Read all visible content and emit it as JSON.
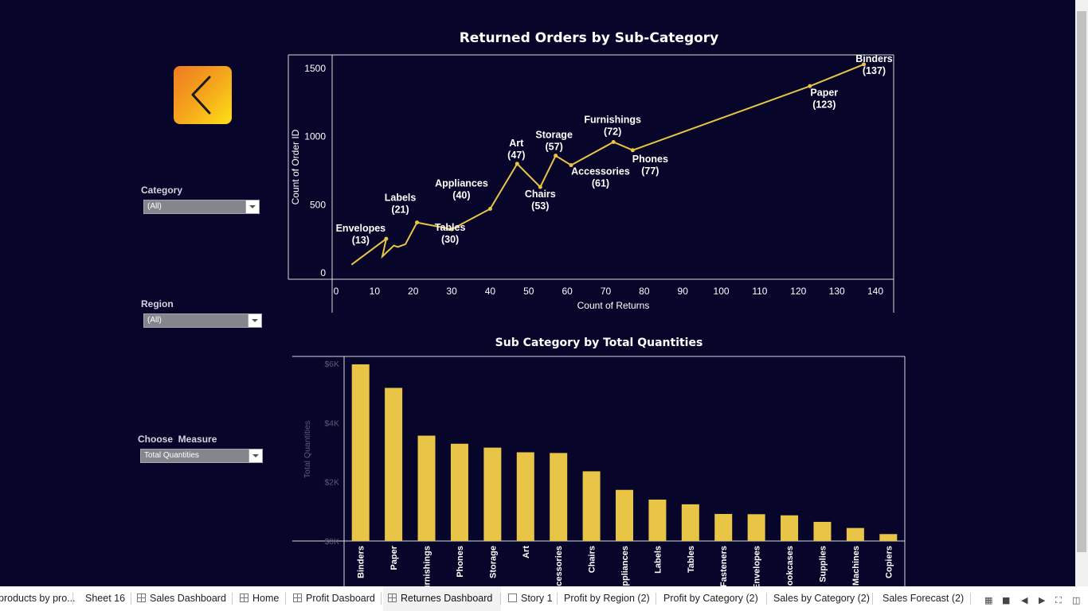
{
  "filters": {
    "category": {
      "label": "Category",
      "value": "(All)"
    },
    "region": {
      "label": "Region",
      "value": "(All)"
    },
    "measure": {
      "label": "Choose  Measure",
      "value": "Total Quantities"
    }
  },
  "back_button": {
    "icon": "chevron-left-icon"
  },
  "chart_data": [
    {
      "type": "line",
      "title": "Returned Orders by Sub-Category",
      "xlabel": "Count of Returns",
      "ylabel": "Count of Order ID",
      "xlim": [
        0,
        145
      ],
      "ylim": [
        0,
        1550
      ],
      "xticks": [
        0,
        10,
        20,
        30,
        40,
        50,
        60,
        70,
        80,
        90,
        100,
        110,
        120,
        130,
        140
      ],
      "yticks": [
        0,
        500,
        1000,
        1500
      ],
      "color": "#e8c547",
      "points": [
        {
          "x": 4,
          "y": 60
        },
        {
          "x": 13,
          "y": 250,
          "label": "Envelopes",
          "value_label": "(13)"
        },
        {
          "x": 12,
          "y": 120
        },
        {
          "x": 15,
          "y": 200
        },
        {
          "x": 16,
          "y": 190
        },
        {
          "x": 18,
          "y": 210
        },
        {
          "x": 21,
          "y": 370,
          "label": "Labels",
          "value_label": "(21)"
        },
        {
          "x": 30,
          "y": 320,
          "label": "Tables",
          "value_label": "(30)"
        },
        {
          "x": 40,
          "y": 470,
          "label": "Appliances",
          "value_label": "(40)"
        },
        {
          "x": 47,
          "y": 800,
          "label": "Art",
          "value_label": "(47)"
        },
        {
          "x": 53,
          "y": 630,
          "label": "Chairs",
          "value_label": "(53)"
        },
        {
          "x": 57,
          "y": 860,
          "label": "Storage",
          "value_label": "(57)"
        },
        {
          "x": 61,
          "y": 790,
          "label": "Accessories",
          "value_label": "(61)"
        },
        {
          "x": 72,
          "y": 960,
          "label": "Furnishings",
          "value_label": "(72)"
        },
        {
          "x": 77,
          "y": 900,
          "label": "Phones",
          "value_label": "(77)"
        },
        {
          "x": 123,
          "y": 1370,
          "label": "Paper",
          "value_label": "(123)"
        },
        {
          "x": 137,
          "y": 1530,
          "label": "Binders",
          "value_label": "(137)"
        }
      ]
    },
    {
      "type": "bar",
      "title": "Sub Category by Total Quantities",
      "ylabel": "Total Quantities",
      "ylim": [
        0,
        6200
      ],
      "yticks": [
        0,
        2000,
        4000,
        6000
      ],
      "ytick_labels": [
        "$0K",
        "$2K",
        "$4K",
        "$6K"
      ],
      "color": "#e8c547",
      "categories": [
        "Binders",
        "Paper",
        "Furnishings",
        "Phones",
        "Storage",
        "Art",
        "Accessories",
        "Chairs",
        "Appliances",
        "Labels",
        "Tables",
        "Fasteners",
        "Envelopes",
        "Bookcases",
        "Supplies",
        "Machines",
        "Copiers"
      ],
      "category_labels": [
        "Binders",
        "Paper",
        "urnishings",
        "Phones",
        "Storage",
        "Art",
        "ccessories",
        "Chairs",
        "ppliances",
        "Labels",
        "Tables",
        "Fasteners",
        "Envelopes",
        "ookcases",
        "Supplies",
        "Machines",
        "Copiers"
      ],
      "values": [
        5974,
        5178,
        3563,
        3289,
        3158,
        3000,
        2976,
        2356,
        1729,
        1400,
        1241,
        914,
        906,
        868,
        647,
        440,
        234
      ]
    }
  ],
  "tabs": [
    {
      "label": "products by pro...",
      "icon": "none"
    },
    {
      "label": "Sheet 16",
      "icon": "none"
    },
    {
      "label": "Sales Dashboard",
      "icon": "dashboard-icon"
    },
    {
      "label": "Home",
      "icon": "dashboard-icon"
    },
    {
      "label": "Profit Dasboard",
      "icon": "dashboard-icon"
    },
    {
      "label": "Returnes Dashboard",
      "icon": "dashboard-icon",
      "active": true
    },
    {
      "label": "Story 1",
      "icon": "story-icon"
    },
    {
      "label": "Profit by Region (2)",
      "icon": "none"
    },
    {
      "label": "Profit by Category (2)",
      "icon": "none"
    },
    {
      "label": "Sales by Category (2)",
      "icon": "none"
    },
    {
      "label": "Sales Forecast (2)",
      "icon": "none"
    }
  ]
}
